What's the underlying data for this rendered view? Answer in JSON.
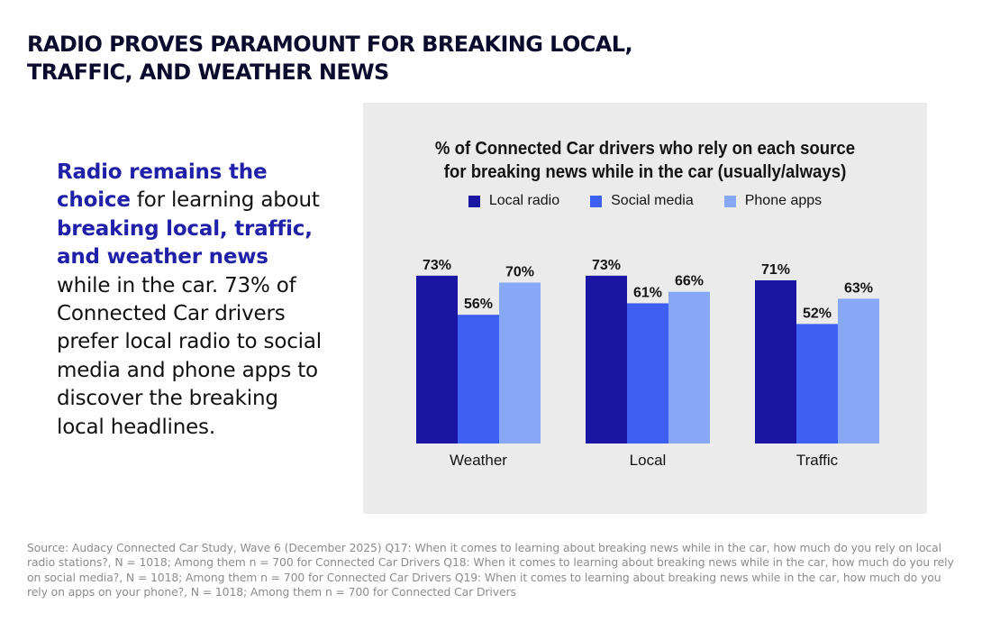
{
  "headline": {
    "line1": "RADIO PROVES PARAMOUNT FOR BREAKING LOCAL,",
    "line2": "TRAFFIC, AND WEATHER NEWS"
  },
  "body": {
    "hl1": "Radio remains the choice",
    "t1": " for learning about ",
    "hl2": "breaking local, traffic, and weather news",
    "t2": " while in the car. 73% of Connected Car drivers prefer local radio to social media and phone apps to discover the breaking local headlines."
  },
  "chart_data": {
    "type": "bar",
    "title_line1": "% of Connected Car drivers who rely on each source",
    "title_line2": "for breaking news while in the car (usually/always)",
    "categories": [
      "Weather",
      "Local",
      "Traffic"
    ],
    "series": [
      {
        "name": "Local radio",
        "color": "#1a15a3",
        "values": [
          73,
          73,
          71
        ],
        "labels": [
          "73%",
          "73%",
          "71%"
        ]
      },
      {
        "name": "Social media",
        "color": "#3d5ff2",
        "values": [
          56,
          61,
          52
        ],
        "labels": [
          "56%",
          "61%",
          "52%"
        ]
      },
      {
        "name": "Phone apps",
        "color": "#86a8f7",
        "values": [
          70,
          66,
          63
        ],
        "labels": [
          "70%",
          "66%",
          "63%"
        ]
      }
    ],
    "ylim": [
      0,
      100
    ],
    "grid": false,
    "legend_position": "top-center"
  },
  "footnote": "Source: Audacy Connected Car Study, Wave 6 (December 2025) Q17: When it comes to learning about breaking news while in the car, how much do you rely on local radio stations?, N = 1018; Among them n = 700 for Connected Car Drivers Q18: When it comes to learning about breaking news while in the car, how much do you rely on social media?, N = 1018; Among them n = 700 for Connected Car Drivers Q19: When it comes to learning about breaking news while in the car, how much do you rely on apps on your phone?, N = 1018; Among them n = 700 for Connected Car Drivers"
}
